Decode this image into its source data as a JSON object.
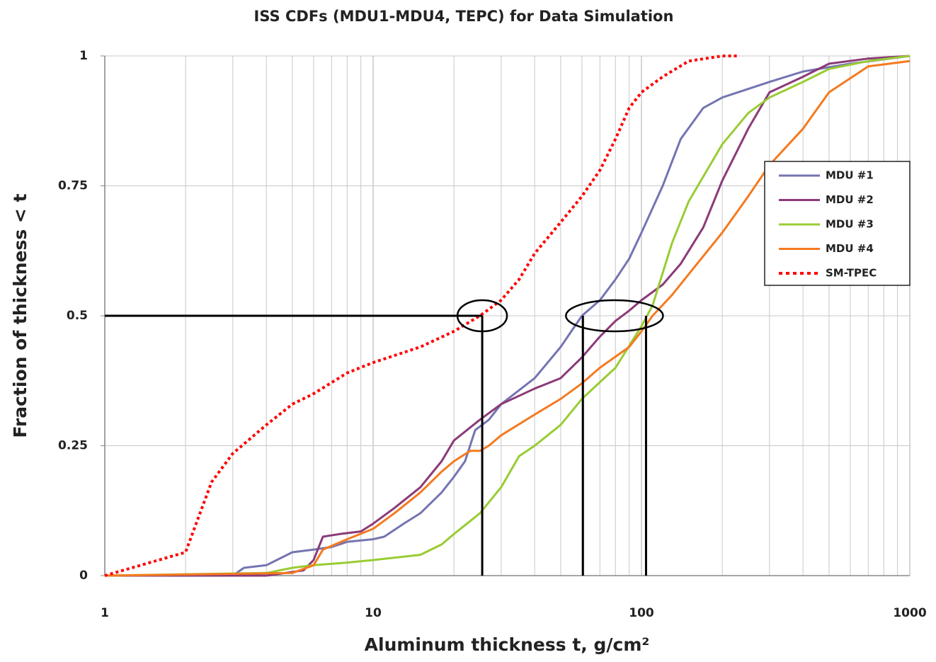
{
  "chart_data": {
    "type": "line",
    "title": "ISS CDFs (MDU1-MDU4, TEPC) for Data Simulation",
    "xlabel": "Aluminum thickness t,  g/cm²",
    "ylabel": "Fraction of thickness < t",
    "xscale": "log",
    "xlim": [
      1,
      1000
    ],
    "ylim": [
      0,
      1
    ],
    "xticks": [
      1,
      10,
      100,
      1000
    ],
    "xminorticks": [
      2,
      3,
      4,
      5,
      6,
      7,
      8,
      9,
      20,
      30,
      40,
      50,
      60,
      70,
      80,
      90,
      200,
      300,
      400,
      500,
      600,
      700,
      800,
      900
    ],
    "yticks": [
      0,
      0.25,
      0.5,
      0.75,
      1
    ],
    "grid": true,
    "legend": "right",
    "series": [
      {
        "name": "MDU #1",
        "color": "#7474b2",
        "dash": false,
        "x": [
          1,
          3,
          3.3,
          4,
          5,
          6,
          7,
          8,
          10,
          11,
          13,
          15,
          18,
          20,
          22,
          24,
          27,
          30,
          40,
          50,
          60,
          70,
          80,
          90,
          100,
          120,
          140,
          170,
          200,
          300,
          400,
          600,
          1000
        ],
        "values": [
          0,
          0,
          0.015,
          0.02,
          0.045,
          0.05,
          0.055,
          0.065,
          0.07,
          0.075,
          0.1,
          0.12,
          0.16,
          0.19,
          0.22,
          0.28,
          0.3,
          0.33,
          0.38,
          0.44,
          0.5,
          0.53,
          0.57,
          0.61,
          0.66,
          0.75,
          0.84,
          0.9,
          0.92,
          0.95,
          0.97,
          0.985,
          1
        ]
      },
      {
        "name": "MDU #2",
        "color": "#8b3a78",
        "dash": false,
        "x": [
          1,
          4,
          5.5,
          6,
          6.5,
          7.5,
          9,
          10,
          12,
          15,
          18,
          20,
          25,
          30,
          40,
          50,
          60,
          70,
          80,
          90,
          100,
          120,
          140,
          170,
          200,
          250,
          300,
          400,
          500,
          700,
          1000
        ],
        "values": [
          0,
          0,
          0.01,
          0.03,
          0.075,
          0.08,
          0.085,
          0.1,
          0.13,
          0.17,
          0.22,
          0.26,
          0.3,
          0.33,
          0.36,
          0.38,
          0.42,
          0.46,
          0.49,
          0.51,
          0.53,
          0.56,
          0.6,
          0.67,
          0.76,
          0.86,
          0.93,
          0.96,
          0.985,
          0.995,
          1
        ]
      },
      {
        "name": "MDU #3",
        "color": "#99cc33",
        "dash": false,
        "x": [
          1,
          4,
          5,
          6,
          8,
          10,
          15,
          18,
          20,
          25,
          30,
          35,
          40,
          50,
          60,
          80,
          100,
          110,
          130,
          150,
          200,
          250,
          300,
          400,
          500,
          700,
          1000
        ],
        "values": [
          0,
          0.005,
          0.015,
          0.02,
          0.025,
          0.03,
          0.04,
          0.06,
          0.08,
          0.12,
          0.17,
          0.23,
          0.25,
          0.29,
          0.34,
          0.4,
          0.48,
          0.52,
          0.64,
          0.72,
          0.83,
          0.89,
          0.92,
          0.95,
          0.975,
          0.99,
          1
        ]
      },
      {
        "name": "MDU #4",
        "color": "#f47a20",
        "dash": false,
        "x": [
          1,
          5,
          6,
          6.5,
          8,
          10,
          12,
          15,
          18,
          20,
          23,
          25,
          27,
          30,
          40,
          50,
          60,
          70,
          90,
          100,
          110,
          130,
          150,
          200,
          250,
          300,
          400,
          500,
          700,
          1000
        ],
        "values": [
          0,
          0.005,
          0.02,
          0.05,
          0.07,
          0.09,
          0.12,
          0.16,
          0.2,
          0.22,
          0.24,
          0.24,
          0.25,
          0.27,
          0.31,
          0.34,
          0.37,
          0.4,
          0.44,
          0.47,
          0.5,
          0.54,
          0.58,
          0.66,
          0.73,
          0.79,
          0.86,
          0.93,
          0.98,
          0.99
        ]
      },
      {
        "name": "SM-TPEC",
        "color": "#ff0000",
        "dash": true,
        "x": [
          1,
          2,
          2.5,
          3,
          4,
          5,
          6,
          8,
          10,
          15,
          20,
          25,
          30,
          35,
          40,
          50,
          60,
          70,
          80,
          90,
          100,
          120,
          150,
          200,
          230
        ],
        "values": [
          0,
          0.045,
          0.18,
          0.235,
          0.29,
          0.33,
          0.35,
          0.39,
          0.41,
          0.44,
          0.47,
          0.5,
          0.53,
          0.57,
          0.62,
          0.68,
          0.73,
          0.78,
          0.84,
          0.9,
          0.93,
          0.96,
          0.99,
          1,
          1
        ]
      }
    ],
    "reference_lines": {
      "y": 0.5,
      "x": [
        25.5,
        60.5,
        104
      ]
    }
  }
}
